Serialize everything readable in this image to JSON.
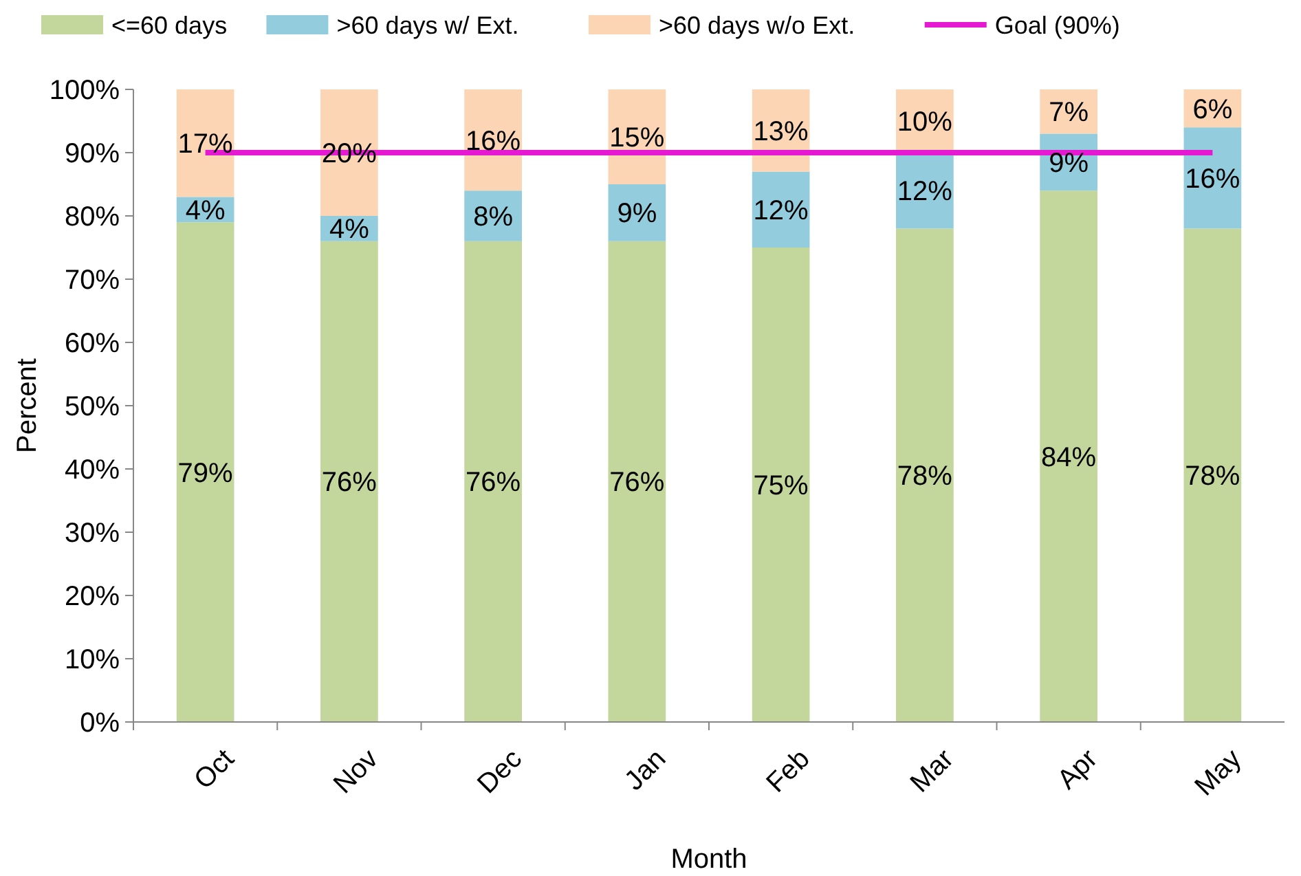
{
  "chart_data": {
    "type": "bar",
    "stacked": true,
    "xlabel": "Month",
    "ylabel": "Percent",
    "categories": [
      "Oct",
      "Nov",
      "Dec",
      "Jan",
      "Feb",
      "Mar",
      "Apr",
      "May"
    ],
    "series": [
      {
        "name": "<=60 days",
        "color": "#c3d69b",
        "values": [
          79,
          76,
          76,
          76,
          75,
          78,
          84,
          78
        ],
        "value_labels": [
          "79%",
          "76%",
          "76%",
          "76%",
          "75%",
          "78%",
          "84%",
          "78%"
        ]
      },
      {
        "name": ">60 days w/ Ext.",
        "color": "#93cddd",
        "values": [
          4,
          4,
          8,
          9,
          12,
          12,
          9,
          16
        ],
        "value_labels": [
          "4%",
          "4%",
          "8%",
          "9%",
          "12%",
          "12%",
          "9%",
          "16%"
        ]
      },
      {
        "name": ">60 days w/o Ext.",
        "color": "#fcd5b5",
        "values": [
          17,
          20,
          16,
          15,
          13,
          10,
          7,
          6
        ],
        "value_labels": [
          "17%",
          "20%",
          "16%",
          "15%",
          "13%",
          "10%",
          "7%",
          "6%"
        ]
      },
      {
        "name": "Goal (90%)",
        "type": "line",
        "color": "#e619d2",
        "values": [
          90,
          90,
          90,
          90,
          90,
          90,
          90,
          90
        ]
      }
    ],
    "ylim": [
      0,
      100
    ],
    "yticks": [
      {
        "value": 0,
        "label": "0%"
      },
      {
        "value": 10,
        "label": "10%"
      },
      {
        "value": 20,
        "label": "20%"
      },
      {
        "value": 30,
        "label": "30%"
      },
      {
        "value": 40,
        "label": "40%"
      },
      {
        "value": 50,
        "label": "50%"
      },
      {
        "value": 60,
        "label": "60%"
      },
      {
        "value": 70,
        "label": "70%"
      },
      {
        "value": 80,
        "label": "80%"
      },
      {
        "value": 90,
        "label": "90%"
      },
      {
        "value": 100,
        "label": "100%"
      }
    ],
    "legend": "top",
    "grid": false
  }
}
